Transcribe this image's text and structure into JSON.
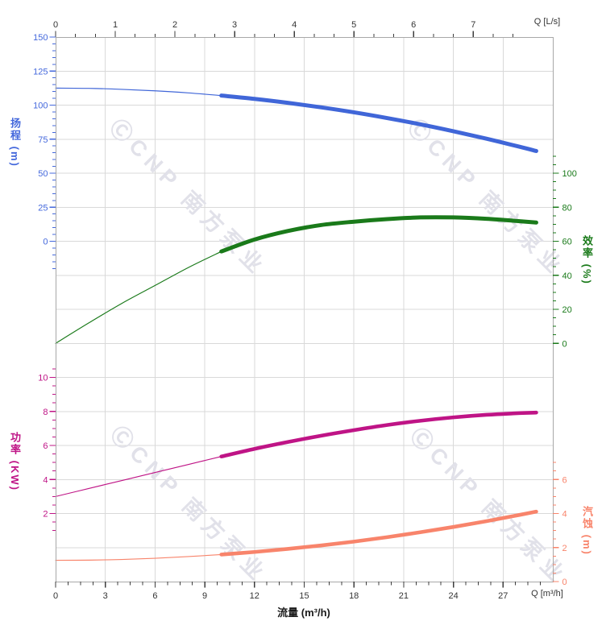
{
  "watermark": {
    "text": "ⒸCNP 南方泵业",
    "color": "#e1e1e9"
  },
  "chart_data": {
    "type": "line",
    "title": "",
    "x_axis": {
      "title_bottom": "流量 (m³/h)",
      "unit_label_top": "Q [L/s]",
      "unit_label_bottom": "Q [m³/h]",
      "range_m3h": [
        0,
        30
      ],
      "top_ticks_ls": [
        0,
        1,
        2,
        3,
        4,
        5,
        6,
        7
      ],
      "bottom_ticks_m3h": [
        0,
        3,
        6,
        9,
        12,
        15,
        18,
        21,
        24,
        27
      ],
      "ls_to_m3h": 3.6,
      "grid": "on"
    },
    "y_axes": {
      "head": {
        "title": "扬程 (m)",
        "color": "#4468dc",
        "ticks": [
          150,
          125,
          100,
          75,
          50,
          25,
          0
        ],
        "range": [
          0,
          150
        ],
        "side": "left"
      },
      "efficiency": {
        "title": "效率 (%)",
        "color": "#1a7a1a",
        "ticks": [
          100,
          80,
          60,
          40,
          20,
          0
        ],
        "range": [
          0,
          100
        ],
        "side": "right"
      },
      "power": {
        "title": "功率 (KW)",
        "color": "#bf1486",
        "ticks": [
          10,
          8,
          6,
          4,
          2
        ],
        "range": [
          2,
          10
        ],
        "side": "left"
      },
      "npsh": {
        "title": "汽蚀 (m)",
        "color": "#f8846b",
        "ticks": [
          6,
          4,
          2,
          0
        ],
        "range": [
          0,
          6
        ],
        "side": "right"
      }
    },
    "series": [
      {
        "name": "head",
        "axis": "head",
        "color": "#4066d8",
        "thick_from_q": 10,
        "x": [
          0,
          2,
          4,
          6,
          8,
          10,
          12,
          14,
          16,
          18,
          20,
          22,
          24,
          26,
          28,
          29
        ],
        "values": [
          112.5,
          112.3,
          111.6,
          110.5,
          109.0,
          107.0,
          104.6,
          101.7,
          98.4,
          94.7,
          90.5,
          85.9,
          80.8,
          75.3,
          69.4,
          66.3
        ]
      },
      {
        "name": "efficiency",
        "axis": "efficiency",
        "color": "#1a7a1a",
        "thick_from_q": 10,
        "x": [
          0,
          2,
          4,
          6,
          8,
          10,
          12,
          14,
          16,
          18,
          20,
          22,
          24,
          26,
          28,
          29
        ],
        "values": [
          0,
          12,
          23.5,
          34,
          44.5,
          54,
          61,
          66,
          69.5,
          71.5,
          73,
          74,
          74,
          73.2,
          71.8,
          71
        ]
      },
      {
        "name": "power",
        "axis": "power",
        "color": "#bf1486",
        "thick_from_q": 10,
        "x": [
          0,
          2,
          4,
          6,
          8,
          10,
          12,
          14,
          16,
          18,
          20,
          22,
          24,
          26,
          28,
          29
        ],
        "values": [
          3.0,
          3.47,
          3.94,
          4.41,
          4.88,
          5.35,
          5.8,
          6.2,
          6.57,
          6.9,
          7.2,
          7.45,
          7.65,
          7.8,
          7.9,
          7.93
        ]
      },
      {
        "name": "npsh",
        "axis": "npsh",
        "color": "#f8846b",
        "thick_from_q": 10,
        "x": [
          0,
          2,
          4,
          6,
          8,
          10,
          12,
          14,
          16,
          18,
          20,
          22,
          24,
          26,
          28,
          29
        ],
        "values": [
          1.25,
          1.26,
          1.3,
          1.37,
          1.47,
          1.59,
          1.74,
          1.92,
          2.12,
          2.35,
          2.61,
          2.9,
          3.21,
          3.55,
          3.92,
          4.11
        ]
      }
    ]
  }
}
